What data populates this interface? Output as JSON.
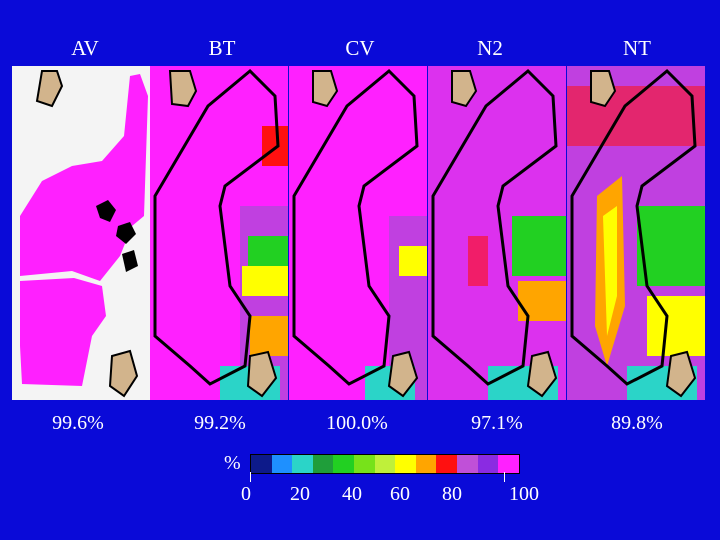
{
  "panels": [
    {
      "name": "AV",
      "percent": "99.6%"
    },
    {
      "name": "BT",
      "percent": "99.2%"
    },
    {
      "name": "CV",
      "percent": "100.0%"
    },
    {
      "name": "N2",
      "percent": "97.1%"
    },
    {
      "name": "NT",
      "percent": "89.8%"
    }
  ],
  "legend": {
    "unit": "%",
    "ticks": [
      "0",
      "20",
      "40",
      "60",
      "80",
      "100"
    ],
    "colors": [
      "#0d1a8a",
      "#1e90ff",
      "#2bd4c8",
      "#1f9e3a",
      "#22d022",
      "#77e21a",
      "#bff03a",
      "#ffff00",
      "#ffa500",
      "#ff1010",
      "#c050d8",
      "#8a2be2",
      "#ff20ff"
    ]
  },
  "colors": {
    "background": "#0a0ad8",
    "magenta": "#ff20ff",
    "purple": "#c040e0",
    "tan": "#d2b48c",
    "white": "#f4f4f4"
  }
}
